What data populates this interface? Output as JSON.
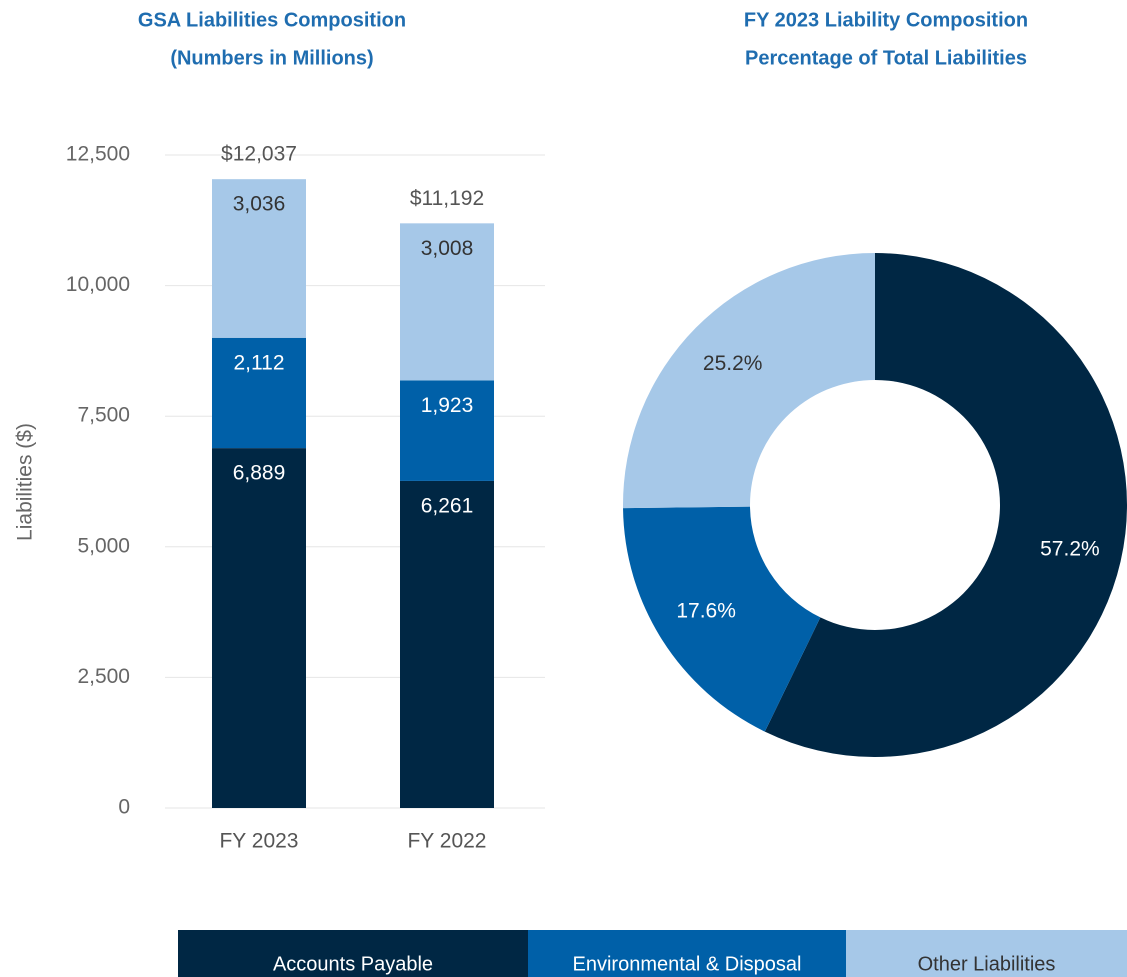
{
  "chart_data": [
    {
      "type": "bar",
      "stacked": true,
      "title": "GSA Liabilities Composition",
      "subtitle": "(Numbers in Millions)",
      "y_label": "Liabilities ($)",
      "categories": [
        "FY 2023",
        "FY 2022"
      ],
      "series": [
        {
          "name": "Accounts Payable",
          "color": "#002744",
          "values": [
            6889,
            6261
          ],
          "value_labels": [
            "6,889",
            "6,261"
          ]
        },
        {
          "name": "Environmental & Disposal",
          "color": "#0060a8",
          "values": [
            2112,
            1923
          ],
          "value_labels": [
            "2,112",
            "1,923"
          ]
        },
        {
          "name": "Other Liabilities",
          "color": "#a6c8e8",
          "values": [
            3036,
            3008
          ],
          "value_labels": [
            "3,036",
            "3,008"
          ]
        }
      ],
      "totals": [
        12037,
        11192
      ],
      "total_labels": [
        "$12,037",
        "$11,192"
      ],
      "ylim": [
        0,
        12500
      ],
      "yticks": [
        0,
        {
          "value": 2500,
          "label": "2,500"
        },
        {
          "value": 5000,
          "label": "5,000"
        },
        {
          "value": 7500,
          "label": "7,500"
        },
        {
          "value": 10000,
          "label": "10,000"
        },
        {
          "value": 12500,
          "label": "12,500"
        }
      ],
      "grid": true,
      "legend": "bottom"
    },
    {
      "type": "donut",
      "title": "FY 2023 Liability Composition",
      "subtitle": "Percentage of Total Liabilities",
      "values": [
        57.2,
        17.6,
        25.2
      ],
      "value_labels": [
        "57.2%",
        "17.6%",
        "25.2%"
      ],
      "colors": [
        "#002744",
        "#0060a8",
        "#a6c8e8"
      ]
    }
  ]
}
